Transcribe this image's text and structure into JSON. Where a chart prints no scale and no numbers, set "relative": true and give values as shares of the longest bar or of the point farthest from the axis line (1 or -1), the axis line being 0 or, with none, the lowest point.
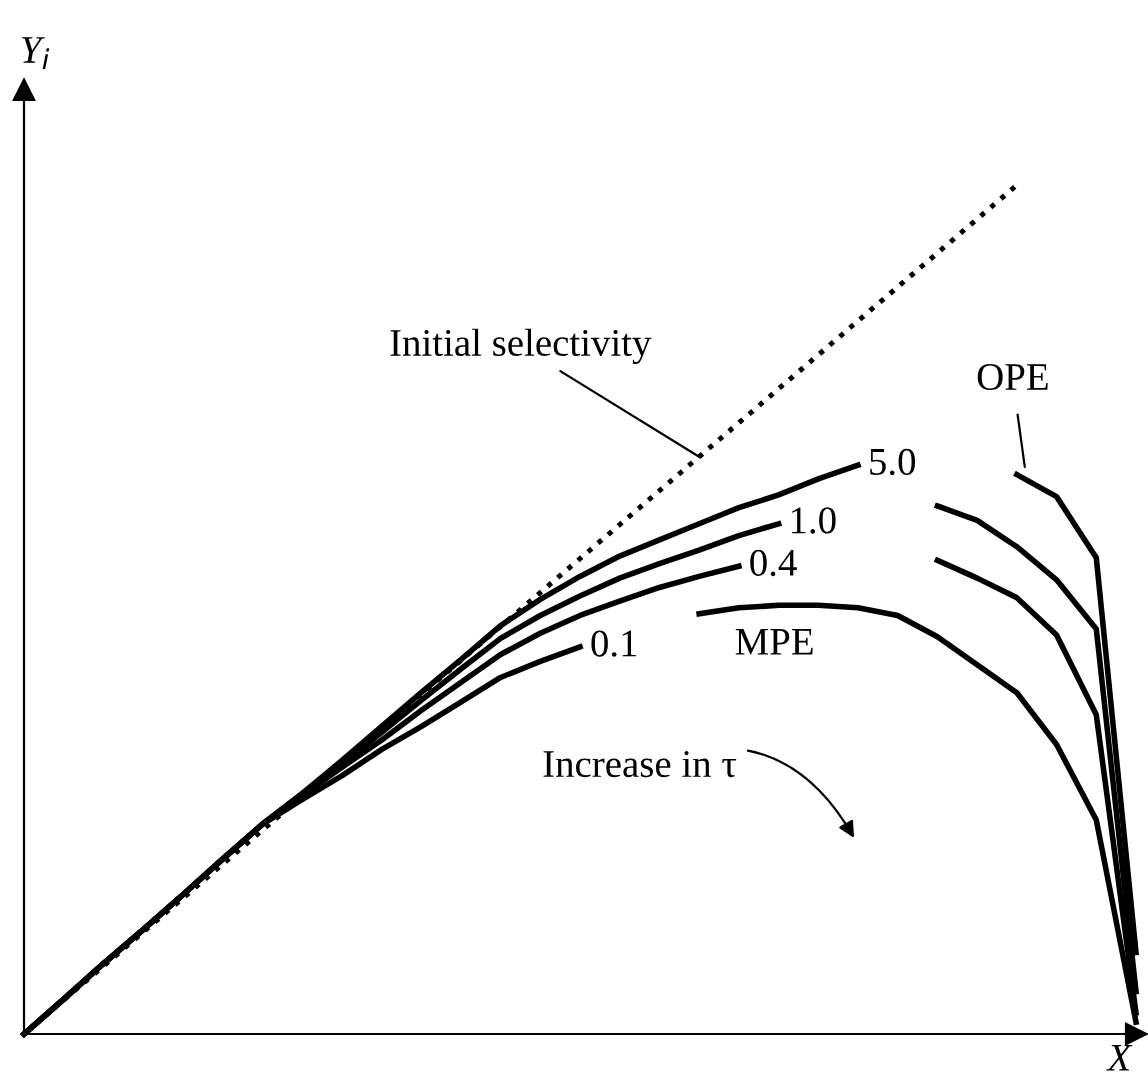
{
  "chart_data": {
    "type": "line",
    "relative": true,
    "xlabel": "X",
    "ylabel": "Y$_{i}$",
    "categories": [
      null,
      null,
      null,
      null,
      null,
      null,
      null,
      null,
      null,
      null,
      null,
      null,
      null,
      null,
      null,
      null,
      null,
      null,
      null,
      null,
      null,
      null,
      null,
      null,
      null,
      null,
      null,
      null,
      null
    ],
    "series": [
      {
        "name": "Initial selectivity",
        "color": "#000000",
        "line_style": "dotted",
        "values": [
          0,
          0.04,
          0.08,
          0.12,
          0.16,
          0.2,
          0.24,
          0.28,
          0.32,
          0.36,
          0.4,
          0.44,
          0.48,
          0.52,
          0.56,
          0.6,
          0.64,
          0.68,
          0.72,
          0.76,
          0.8,
          0.84,
          0.88,
          0.92,
          0.96,
          1.0,
          null,
          null,
          null
        ]
      },
      {
        "name": "5.0",
        "color": "#000000",
        "line_style": "solid",
        "values": [
          0,
          0.041,
          0.083,
          0.123,
          0.164,
          0.206,
          0.247,
          0.283,
          0.322,
          0.362,
          0.402,
          0.441,
          0.481,
          0.512,
          0.539,
          0.563,
          0.582,
          0.601,
          0.62,
          0.635,
          0.654,
          0.67,
          null,
          null,
          null,
          0.659,
          0.633,
          0.561,
          0.096
        ]
      },
      {
        "name": "1.0",
        "color": "#000000",
        "line_style": "solid",
        "values": [
          0,
          0.041,
          0.083,
          0.123,
          0.164,
          0.206,
          0.247,
          0.283,
          0.318,
          0.355,
          0.393,
          0.43,
          0.466,
          0.493,
          0.516,
          0.537,
          0.554,
          0.57,
          0.587,
          0.601,
          null,
          null,
          null,
          0.622,
          0.605,
          0.574,
          0.535,
          0.477,
          0.05
        ]
      },
      {
        "name": "0.4",
        "color": "#000000",
        "line_style": "solid",
        "values": [
          0,
          0.041,
          0.083,
          0.123,
          0.164,
          0.206,
          0.247,
          0.281,
          0.314,
          0.346,
          0.381,
          0.414,
          0.447,
          0.472,
          0.493,
          0.51,
          0.526,
          0.539,
          0.551,
          null,
          null,
          null,
          null,
          0.558,
          0.537,
          0.514,
          0.47,
          0.376,
          0.025
        ]
      },
      {
        "name": "0.1",
        "color": "#000000",
        "line_style": "solid",
        "values": [
          0,
          0.041,
          0.083,
          0.123,
          0.164,
          0.206,
          0.247,
          0.276,
          0.304,
          0.335,
          0.362,
          0.391,
          0.42,
          0.439,
          0.456,
          null,
          null,
          0.495,
          0.502,
          0.505,
          0.505,
          0.502,
          0.493,
          0.468,
          0.435,
          0.402,
          0.341,
          0.252,
          0.014
        ]
      }
    ],
    "annotations": [
      "OPE",
      "MPE",
      "Increase in τ"
    ]
  }
}
